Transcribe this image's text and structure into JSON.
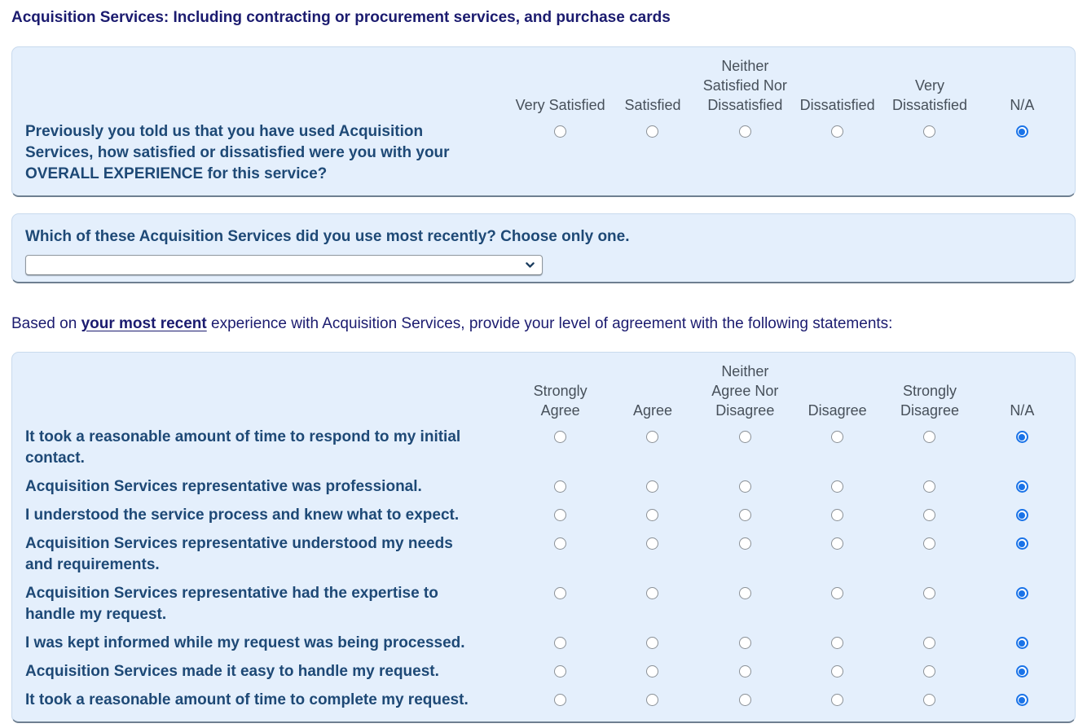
{
  "colors": {
    "accent": "#1a73e8",
    "panel_bg": "#e4effc",
    "panel_border": "#c8daed",
    "panel_border_bottom": "#6e7f90",
    "title_text": "#1b1b6f",
    "statement_text": "#1e4976",
    "header_text": "#47505a"
  },
  "page_title": "Acquisition Services: Including contracting or procurement services, and purchase cards",
  "satisfaction_matrix": {
    "columns": [
      {
        "label": "Very Satisfied",
        "lines": [
          "Very Satisfied"
        ]
      },
      {
        "label": "Satisfied",
        "lines": [
          "Satisfied"
        ]
      },
      {
        "label": "Neither Satisfied Nor Dissatisfied",
        "lines": [
          "Neither",
          "Satisfied Nor",
          "Dissatisfied"
        ]
      },
      {
        "label": "Dissatisfied",
        "lines": [
          "Dissatisfied"
        ]
      },
      {
        "label": "Very Dissatisfied",
        "lines": [
          "Very",
          "Dissatisfied"
        ]
      },
      {
        "label": "N/A",
        "lines": [
          "N/A"
        ]
      }
    ],
    "rows": [
      {
        "text": "Previously you told us that you have used Acquisition Services, how satisfied or dissatisfied were you with your OVERALL EXPERIENCE for this service?",
        "selected": "N/A"
      }
    ]
  },
  "recent_question": {
    "prefix": "Which of these Acquisition Services did you use ",
    "bold": "most recently",
    "suffix": "? Choose only one.",
    "dropdown_value": ""
  },
  "agreement_heading": {
    "prefix": "Based on ",
    "emphasis": "your most recent",
    "suffix": " experience with Acquisition Services, provide your level of agreement with the following statements:"
  },
  "agreement_matrix": {
    "columns": [
      {
        "label": "Strongly Agree",
        "lines": [
          "Strongly",
          "Agree"
        ]
      },
      {
        "label": "Agree",
        "lines": [
          "Agree"
        ]
      },
      {
        "label": "Neither Agree Nor Disagree",
        "lines": [
          "Neither",
          "Agree Nor",
          "Disagree"
        ]
      },
      {
        "label": "Disagree",
        "lines": [
          "Disagree"
        ]
      },
      {
        "label": "Strongly Disagree",
        "lines": [
          "Strongly",
          "Disagree"
        ]
      },
      {
        "label": "N/A",
        "lines": [
          "N/A"
        ]
      }
    ],
    "rows": [
      {
        "text": "It took a reasonable amount of time to respond to my initial contact.",
        "selected": "N/A"
      },
      {
        "text": "Acquisition Services representative was professional.",
        "selected": "N/A"
      },
      {
        "text": "I understood the service process and knew what to expect.",
        "selected": "N/A"
      },
      {
        "text": "Acquisition Services representative understood my needs and requirements.",
        "selected": "N/A"
      },
      {
        "text": "Acquisition Services representative had the expertise to handle my request.",
        "selected": "N/A"
      },
      {
        "text": "I was kept informed while my request was being processed.",
        "selected": "N/A"
      },
      {
        "text": "Acquisition Services made it easy to handle my request.",
        "selected": "N/A"
      },
      {
        "text": "It took a reasonable amount of time to complete my request.",
        "selected": "N/A"
      }
    ]
  }
}
